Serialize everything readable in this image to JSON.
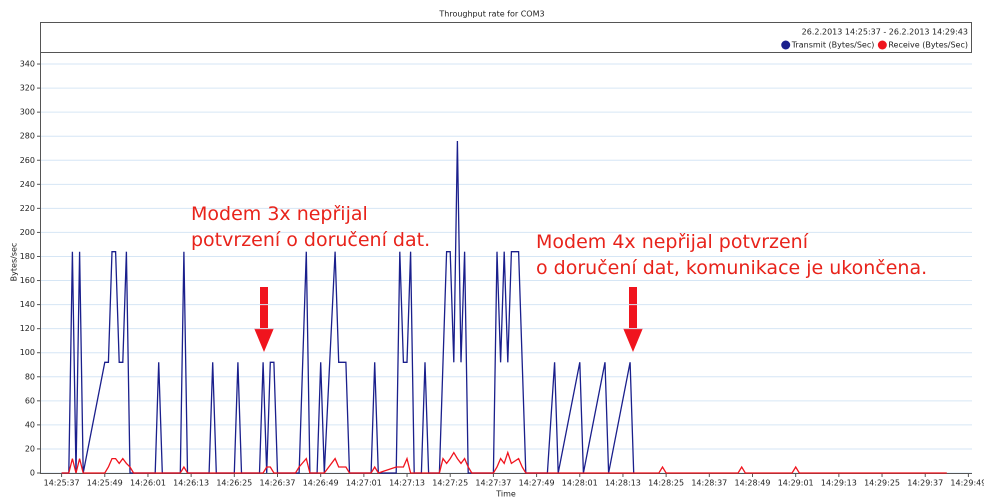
{
  "chart_data": {
    "type": "line",
    "title": "Throughput rate for COM3",
    "subtitle": "26.2.2013 14:25:37 - 26.2.2013 14:29:43",
    "xlabel": "Time",
    "ylabel": "Bytes/sec",
    "x": [
      "14:25:37",
      "14:25:39",
      "14:25:40",
      "14:25:41",
      "14:25:42",
      "14:25:43",
      "14:25:49",
      "14:25:50",
      "14:25:51",
      "14:25:52",
      "14:25:53",
      "14:25:54",
      "14:25:55",
      "14:25:56",
      "14:25:57",
      "14:26:03",
      "14:26:04",
      "14:26:05",
      "14:26:10",
      "14:26:11",
      "14:26:12",
      "14:26:18",
      "14:26:19",
      "14:26:20",
      "14:26:25",
      "14:26:26",
      "14:26:27",
      "14:26:32",
      "14:26:33",
      "14:26:34",
      "14:26:35",
      "14:26:36",
      "14:26:37",
      "14:26:42",
      "14:26:43",
      "14:26:45",
      "14:26:46",
      "14:26:48",
      "14:26:49",
      "14:26:50",
      "14:26:53",
      "14:26:54",
      "14:26:56",
      "14:26:57",
      "14:27:03",
      "14:27:04",
      "14:27:05",
      "14:27:10",
      "14:27:11",
      "14:27:12",
      "14:27:13",
      "14:27:14",
      "14:27:15",
      "14:27:17",
      "14:27:18",
      "14:27:19",
      "14:27:22",
      "14:27:23",
      "14:27:24",
      "14:27:25",
      "14:27:26",
      "14:27:27",
      "14:27:28",
      "14:27:29",
      "14:27:30",
      "14:27:31",
      "14:27:37",
      "14:27:38",
      "14:27:39",
      "14:27:40",
      "14:27:41",
      "14:27:42",
      "14:27:44",
      "14:27:45",
      "14:27:46",
      "14:27:52",
      "14:27:54",
      "14:27:55",
      "14:28:01",
      "14:28:02",
      "14:28:08",
      "14:28:09",
      "14:28:15",
      "14:28:16",
      "14:28:23",
      "14:28:24",
      "14:28:25",
      "14:28:45",
      "14:28:46",
      "14:28:47",
      "14:29:00",
      "14:29:01",
      "14:29:02",
      "14:29:43"
    ],
    "series": [
      {
        "name": "Transmit (Bytes/Sec)",
        "color": "#1a1f8c",
        "values": [
          0,
          0,
          184,
          0,
          184,
          0,
          92,
          92,
          184,
          184,
          92,
          92,
          184,
          0,
          0,
          0,
          92,
          0,
          0,
          184,
          0,
          0,
          92,
          0,
          0,
          92,
          0,
          0,
          92,
          0,
          92,
          92,
          0,
          0,
          0,
          184,
          0,
          0,
          92,
          0,
          184,
          92,
          92,
          0,
          0,
          92,
          0,
          0,
          184,
          92,
          92,
          184,
          0,
          0,
          92,
          0,
          0,
          92,
          184,
          184,
          92,
          276,
          92,
          184,
          0,
          0,
          0,
          184,
          92,
          184,
          92,
          184,
          184,
          92,
          0,
          0,
          92,
          0,
          92,
          0,
          92,
          0,
          92,
          0,
          null,
          null,
          null,
          null,
          null,
          null,
          null,
          null,
          null,
          null
        ]
      },
      {
        "name": "Receive (Bytes/Sec)",
        "color": "#f0141e",
        "values": [
          0,
          0,
          12,
          0,
          12,
          0,
          0,
          5,
          12,
          12,
          8,
          12,
          8,
          5,
          0,
          0,
          0,
          0,
          0,
          5,
          0,
          0,
          0,
          0,
          0,
          0,
          0,
          0,
          0,
          5,
          5,
          0,
          0,
          0,
          5,
          12,
          0,
          0,
          0,
          0,
          12,
          5,
          5,
          0,
          0,
          5,
          0,
          5,
          5,
          5,
          12,
          0,
          0,
          0,
          0,
          0,
          0,
          12,
          8,
          12,
          17,
          12,
          8,
          12,
          5,
          0,
          0,
          5,
          12,
          8,
          17,
          8,
          12,
          5,
          0,
          0,
          0,
          0,
          0,
          0,
          0,
          0,
          0,
          0,
          0,
          5,
          0,
          0,
          5,
          0,
          0,
          5,
          0,
          0
        ]
      }
    ],
    "xlim": [
      "14:25:31",
      "14:29:50"
    ],
    "xticks": [
      "14:25:37",
      "14:25:49",
      "14:26:01",
      "14:26:13",
      "14:26:25",
      "14:26:37",
      "14:26:49",
      "14:27:01",
      "14:27:13",
      "14:27:25",
      "14:27:37",
      "14:27:49",
      "14:28:01",
      "14:28:13",
      "14:28:25",
      "14:28:37",
      "14:28:49",
      "14:29:01",
      "14:29:13",
      "14:29:25",
      "14:29:37",
      "14:29:49"
    ],
    "ylim": [
      0,
      350
    ],
    "yticks": [
      0,
      20,
      40,
      60,
      80,
      100,
      120,
      140,
      160,
      180,
      200,
      220,
      240,
      260,
      280,
      300,
      320,
      340
    ],
    "grid": true,
    "legend": "top-right",
    "annotations": [
      {
        "lines": [
          "Modem 3x nepřijal",
          "potvrzení o doručení dat."
        ]
      },
      {
        "lines": [
          "Modem 4x nepřijal potvrzení",
          "o doručení dat, komunikace je ukončena."
        ]
      }
    ]
  }
}
